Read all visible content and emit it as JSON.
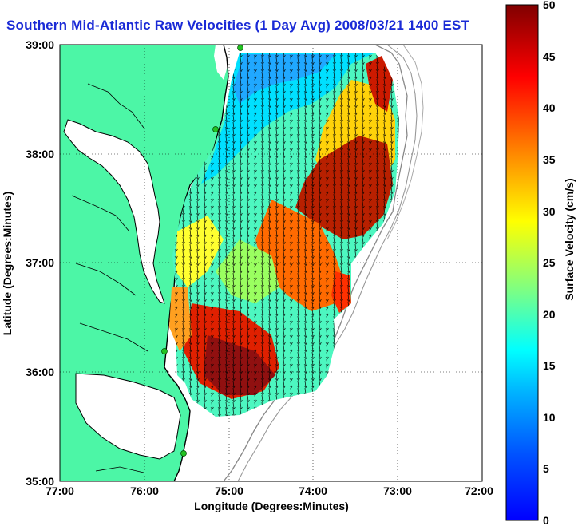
{
  "title": "Southern Mid-Atlantic Raw Velocities (1 Day Avg) 2008/03/21 1400 EST",
  "map": {
    "xlabel": "Longitude (Degrees:Minutes)",
    "ylabel": "Latitude (Degrees:Minutes)",
    "x_ticks": [
      "77:00",
      "76:00",
      "75:00",
      "74:00",
      "73:00",
      "72:00"
    ],
    "y_ticks": [
      "39:00",
      "38:00",
      "37:00",
      "36:00",
      "35:00"
    ],
    "grid": "dotted",
    "colors": {
      "land": "#4cf6a6",
      "water": "#ffffff",
      "coast": "#000000",
      "bathymetry": "#888888",
      "station": "#22c222"
    }
  },
  "colorbar": {
    "label": "Surface Velocity (cm/s)",
    "ticks": [
      "50",
      "45",
      "40",
      "35",
      "30",
      "25",
      "20",
      "15",
      "10",
      "5",
      "0"
    ],
    "range": [
      0,
      50
    ],
    "colormap": "jet"
  }
}
